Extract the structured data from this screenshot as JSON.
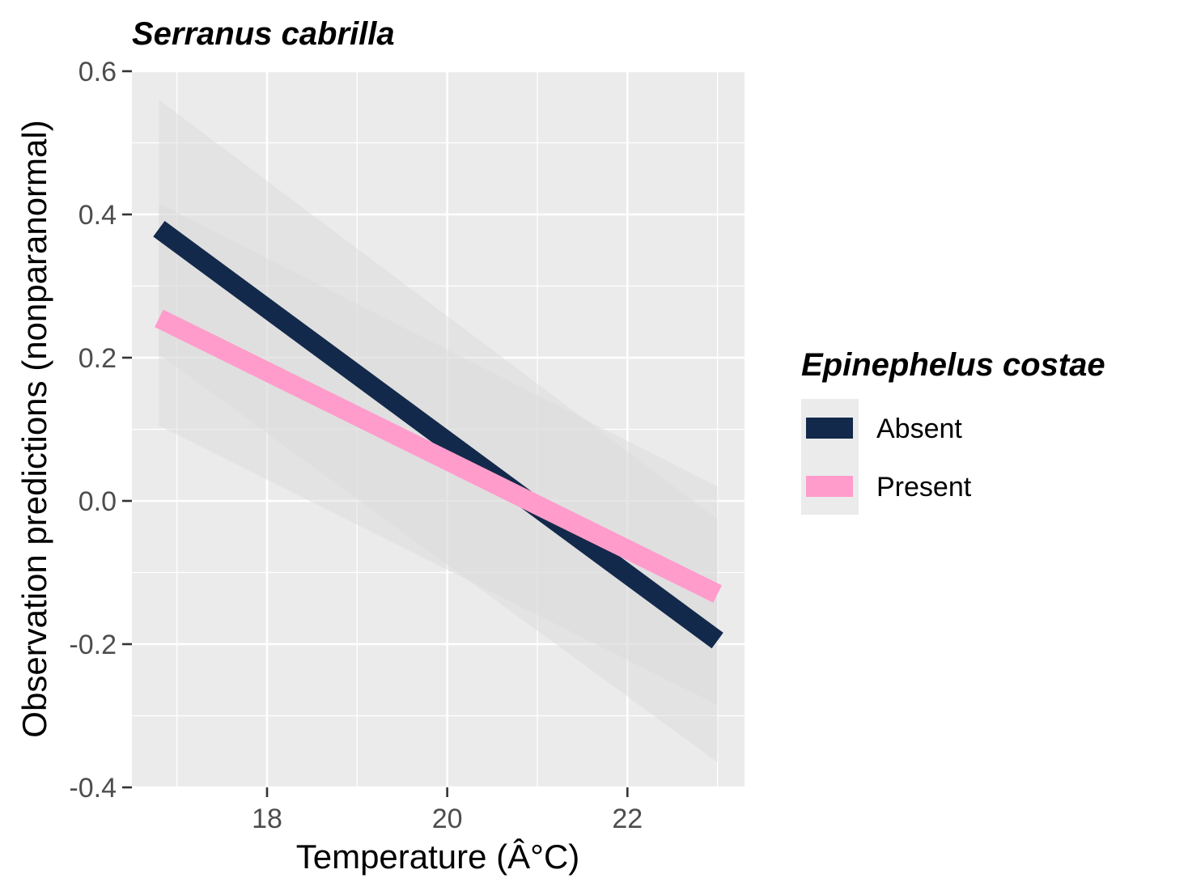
{
  "chart_data": {
    "type": "line",
    "title": "Serranus cabrilla",
    "xlabel": "Temperature (Â°C)",
    "ylabel": "Observation predictions (nonparanormal)",
    "xlim": [
      16.5,
      23.3
    ],
    "ylim": [
      -0.4,
      0.6
    ],
    "x_ticks": [
      18,
      20,
      22
    ],
    "x_tick_labels": [
      "18",
      "20",
      "22"
    ],
    "y_ticks": [
      -0.4,
      -0.2,
      0.0,
      0.2,
      0.4,
      0.6
    ],
    "y_tick_labels": [
      "-0.4",
      "-0.2",
      "0.0",
      "0.2",
      "0.4",
      "0.6"
    ],
    "grid": true,
    "legend": {
      "title": "Epinephelus costae",
      "position": "right"
    },
    "series": [
      {
        "name": "Absent",
        "color": "#13294b",
        "x": [
          16.8,
          23.0
        ],
        "y": [
          0.38,
          -0.195
        ],
        "ci_lower": [
          0.205,
          -0.365
        ],
        "ci_upper": [
          0.56,
          -0.025
        ]
      },
      {
        "name": "Present",
        "color": "#ff9ccb",
        "x": [
          16.8,
          23.0
        ],
        "y": [
          0.255,
          -0.13
        ],
        "ci_lower": [
          0.105,
          -0.285
        ],
        "ci_upper": [
          0.415,
          0.02
        ]
      }
    ],
    "panel_color": "#ebebeb",
    "grid_color": "#ffffff",
    "ribbon_color": "#d9d9d9"
  }
}
